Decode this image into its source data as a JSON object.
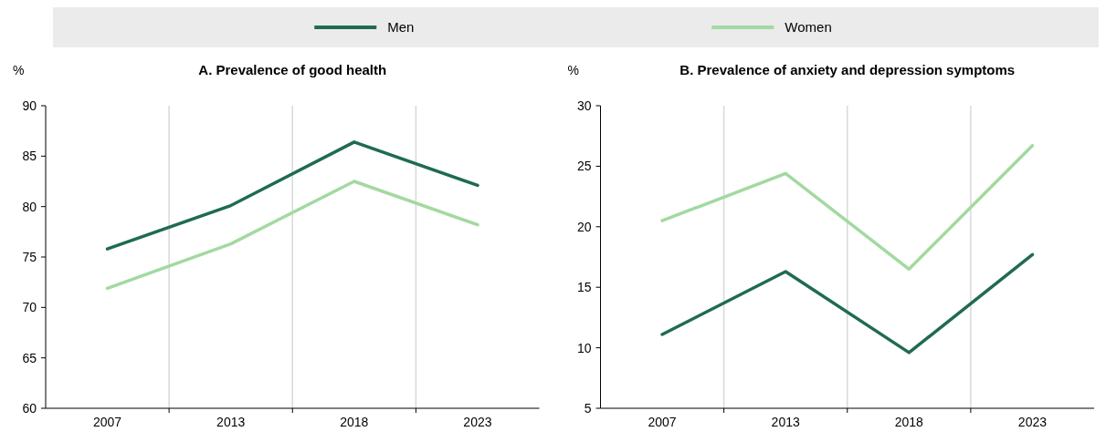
{
  "chart_data": [
    {
      "type": "line",
      "title": "A. Prevalence of good health",
      "ylabel": "%",
      "categories": [
        "2007",
        "2013",
        "2018",
        "2023"
      ],
      "ylim": [
        60,
        90
      ],
      "yticks": [
        60,
        65,
        70,
        75,
        80,
        85,
        90
      ],
      "grid": "x",
      "legend": "top",
      "series": [
        {
          "name": "Men",
          "color": "#1f6b52",
          "values": [
            75.8,
            80.1,
            86.4,
            82.1
          ]
        },
        {
          "name": "Women",
          "color": "#a3d9a0",
          "values": [
            71.9,
            76.3,
            82.5,
            78.2
          ]
        }
      ]
    },
    {
      "type": "line",
      "title": "B. Prevalence of anxiety and depression symptoms",
      "ylabel": "%",
      "categories": [
        "2007",
        "2013",
        "2018",
        "2023"
      ],
      "ylim": [
        5,
        30
      ],
      "yticks": [
        5,
        10,
        15,
        20,
        25,
        30
      ],
      "grid": "x",
      "legend": "top",
      "series": [
        {
          "name": "Men",
          "color": "#1f6b52",
          "values": [
            11.1,
            16.3,
            9.6,
            17.7
          ]
        },
        {
          "name": "Women",
          "color": "#a3d9a0",
          "values": [
            20.5,
            24.4,
            16.5,
            26.7
          ]
        }
      ]
    }
  ]
}
